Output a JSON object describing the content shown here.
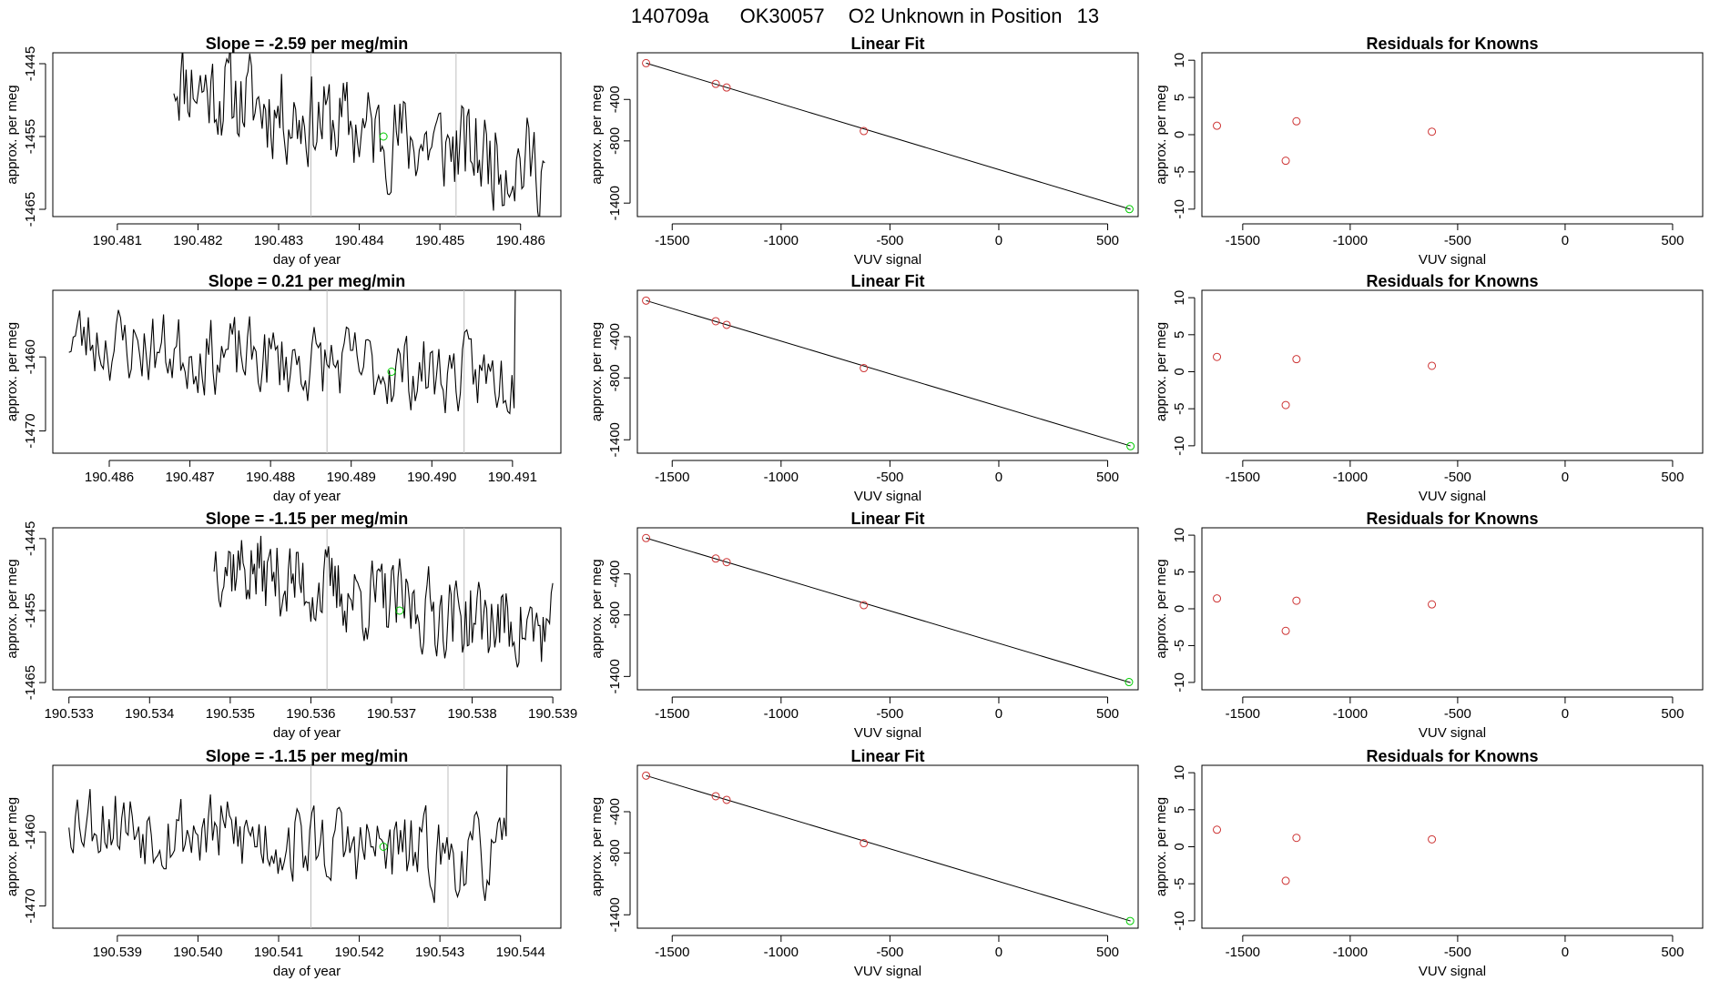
{
  "figure": {
    "title_parts": [
      "140709a",
      "OK30057",
      "O2 Unknown in Position",
      "13"
    ]
  },
  "colors": {
    "line": "#000000",
    "fit_point": "#cd3333",
    "unknown_point": "#00cc00",
    "vline": "#bebebe",
    "axis": "#000000"
  },
  "rows": [
    {
      "time_panel": {
        "title": "Slope =  -2.59  per meg/min",
        "xlabel": "day of year",
        "ylabel": "approx. per meg",
        "xlim": [
          190.4802,
          190.4865
        ],
        "ylim": [
          -1466,
          -1443.5
        ],
        "xticks": [
          190.481,
          190.482,
          190.483,
          190.484,
          190.485,
          190.486
        ],
        "xtick_labels": [
          "190.481",
          "190.482",
          "190.483",
          "190.484",
          "190.485",
          "190.486"
        ],
        "yticks": [
          -1465,
          -1455,
          -1445
        ],
        "ytick_labels": [
          "-1465",
          "-1455",
          "-1445"
        ],
        "vlines": [
          190.4834,
          190.4852
        ],
        "x_start": 190.4817,
        "x_end": 190.4863,
        "level_start": -1446,
        "level_end": -1459,
        "noise": 4.6,
        "seed": 11,
        "marker": [
          190.4843,
          -1455
        ]
      },
      "fit_panel": {
        "title": "Linear Fit",
        "xlabel": "VUV signal",
        "ylabel": "approx. per meg",
        "xlim": [
          -1660,
          640
        ],
        "ylim": [
          -1530,
          50
        ],
        "xticks": [
          -1500,
          -1000,
          -500,
          0,
          500
        ],
        "xtick_labels": [
          "-1500",
          "-1000",
          "-500",
          "0",
          "500"
        ],
        "yticks": [
          -1400,
          -800,
          -400
        ],
        "ytick_labels": [
          "-1400",
          "-800",
          "-400"
        ],
        "fit_line": [
          [
            -1620,
            -50
          ],
          [
            605,
            -1460
          ]
        ],
        "points": [
          [
            -1620,
            -50
          ],
          [
            -1300,
            -250
          ],
          [
            -1250,
            -285
          ],
          [
            -620,
            -705
          ]
        ],
        "unknown": [
          600,
          -1458
        ]
      },
      "resid_panel": {
        "title": "Residuals for Knowns",
        "xlabel": "VUV signal",
        "ylabel": "approx. per meg",
        "xlim": [
          -1690,
          640
        ],
        "ylim": [
          -11,
          11
        ],
        "xticks": [
          -1500,
          -1000,
          -500,
          0,
          500
        ],
        "xtick_labels": [
          "-1500",
          "-1000",
          "-500",
          "0",
          "500"
        ],
        "yticks": [
          -10,
          -5,
          0,
          5,
          10
        ],
        "ytick_labels": [
          "-10",
          "-5",
          "0",
          "5",
          "10"
        ],
        "points": [
          [
            -1620,
            1.2
          ],
          [
            -1300,
            -3.5
          ],
          [
            -1250,
            1.8
          ],
          [
            -620,
            0.4
          ]
        ]
      }
    },
    {
      "time_panel": {
        "title": "Slope =  0.21  per meg/min",
        "xlabel": "day of year",
        "ylabel": "approx. per meg",
        "xlim": [
          190.4853,
          190.4916
        ],
        "ylim": [
          -1473,
          -1451
        ],
        "xticks": [
          190.486,
          190.487,
          190.488,
          190.489,
          190.49,
          190.491
        ],
        "xtick_labels": [
          "190.486",
          "190.487",
          "190.488",
          "190.489",
          "190.490",
          "190.491"
        ],
        "yticks": [
          -1470,
          -1460
        ],
        "ytick_labels": [
          "-1470",
          "-1460"
        ],
        "vlines": [
          190.4887,
          190.4904
        ],
        "x_start": 190.4855,
        "x_end": 190.4911,
        "level_start": -1457,
        "level_end": -1463,
        "noise": 3.6,
        "seed": 23,
        "spike_end": -1450,
        "marker": [
          190.4895,
          -1462
        ]
      },
      "fit_panel": {
        "title": "Linear Fit",
        "xlabel": "VUV signal",
        "ylabel": "approx. per meg",
        "xlim": [
          -1660,
          640
        ],
        "ylim": [
          -1530,
          50
        ],
        "xticks": [
          -1500,
          -1000,
          -500,
          0,
          500
        ],
        "xtick_labels": [
          "-1500",
          "-1000",
          "-500",
          "0",
          "500"
        ],
        "yticks": [
          -1400,
          -800,
          -400
        ],
        "ytick_labels": [
          "-1400",
          "-800",
          "-400"
        ],
        "fit_line": [
          [
            -1620,
            -50
          ],
          [
            605,
            -1460
          ]
        ],
        "points": [
          [
            -1620,
            -50
          ],
          [
            -1300,
            -250
          ],
          [
            -1250,
            -285
          ],
          [
            -620,
            -705
          ]
        ],
        "unknown": [
          605,
          -1462
        ]
      },
      "resid_panel": {
        "title": "Residuals for Knowns",
        "xlabel": "VUV signal",
        "ylabel": "approx. per meg",
        "xlim": [
          -1690,
          640
        ],
        "ylim": [
          -11,
          11
        ],
        "xticks": [
          -1500,
          -1000,
          -500,
          0,
          500
        ],
        "xtick_labels": [
          "-1500",
          "-1000",
          "-500",
          "0",
          "500"
        ],
        "yticks": [
          -10,
          -5,
          0,
          5,
          10
        ],
        "ytick_labels": [
          "-10",
          "-5",
          "0",
          "5",
          "10"
        ],
        "points": [
          [
            -1620,
            2.0
          ],
          [
            -1300,
            -4.5
          ],
          [
            -1250,
            1.7
          ],
          [
            -620,
            0.8
          ]
        ]
      }
    },
    {
      "time_panel": {
        "title": "Slope =  -1.15  per meg/min",
        "xlabel": "day of year",
        "ylabel": "approx. per meg",
        "xlim": [
          190.5328,
          190.5391
        ],
        "ylim": [
          -1466,
          -1443.5
        ],
        "xticks": [
          190.533,
          190.534,
          190.535,
          190.536,
          190.537,
          190.538,
          190.539
        ],
        "xtick_labels": [
          "190.533",
          "190.534",
          "190.535",
          "190.536",
          "190.537",
          "190.538",
          "190.539"
        ],
        "yticks": [
          -1465,
          -1455,
          -1445
        ],
        "ytick_labels": [
          "-1465",
          "-1455",
          "-1445"
        ],
        "vlines": [
          190.5362,
          190.5379
        ],
        "x_start": 190.5348,
        "x_end": 190.539,
        "level_start": -1447,
        "level_end": -1458,
        "noise": 4.0,
        "seed": 37,
        "marker": [
          190.5371,
          -1455
        ]
      },
      "fit_panel": {
        "title": "Linear Fit",
        "xlabel": "VUV signal",
        "ylabel": "approx. per meg",
        "xlim": [
          -1660,
          640
        ],
        "ylim": [
          -1530,
          50
        ],
        "xticks": [
          -1500,
          -1000,
          -500,
          0,
          500
        ],
        "xtick_labels": [
          "-1500",
          "-1000",
          "-500",
          "0",
          "500"
        ],
        "yticks": [
          -1400,
          -800,
          -400
        ],
        "ytick_labels": [
          "-1400",
          "-800",
          "-400"
        ],
        "fit_line": [
          [
            -1620,
            -50
          ],
          [
            605,
            -1460
          ]
        ],
        "points": [
          [
            -1620,
            -50
          ],
          [
            -1300,
            -250
          ],
          [
            -1250,
            -285
          ],
          [
            -620,
            -705
          ]
        ],
        "unknown": [
          598,
          -1455
        ]
      },
      "resid_panel": {
        "title": "Residuals for Knowns",
        "xlabel": "VUV signal",
        "ylabel": "approx. per meg",
        "xlim": [
          -1690,
          640
        ],
        "ylim": [
          -11,
          11
        ],
        "xticks": [
          -1500,
          -1000,
          -500,
          0,
          500
        ],
        "xtick_labels": [
          "-1500",
          "-1000",
          "-500",
          "0",
          "500"
        ],
        "yticks": [
          -10,
          -5,
          0,
          5,
          10
        ],
        "ytick_labels": [
          "-10",
          "-5",
          "0",
          "5",
          "10"
        ],
        "points": [
          [
            -1620,
            1.4
          ],
          [
            -1300,
            -3.0
          ],
          [
            -1250,
            1.1
          ],
          [
            -620,
            0.6
          ]
        ]
      }
    },
    {
      "time_panel": {
        "title": "Slope =  -1.15  per meg/min",
        "xlabel": "day of year",
        "ylabel": "approx. per meg",
        "xlim": [
          190.5382,
          190.5445
        ],
        "ylim": [
          -1473,
          -1451
        ],
        "xticks": [
          190.539,
          190.54,
          190.541,
          190.542,
          190.543,
          190.544
        ],
        "xtick_labels": [
          "190.539",
          "190.540",
          "190.541",
          "190.542",
          "190.543",
          "190.544"
        ],
        "yticks": [
          -1470,
          -1460
        ],
        "ytick_labels": [
          "-1470",
          "-1460"
        ],
        "vlines": [
          190.5414,
          190.5431
        ],
        "x_start": 190.5384,
        "x_end": 190.5439,
        "level_start": -1457,
        "level_end": -1464,
        "noise": 3.8,
        "seed": 53,
        "spike_end": -1450,
        "marker": [
          190.5423,
          -1462
        ]
      },
      "fit_panel": {
        "title": "Linear Fit",
        "xlabel": "VUV signal",
        "ylabel": "approx. per meg",
        "xlim": [
          -1660,
          640
        ],
        "ylim": [
          -1530,
          50
        ],
        "xticks": [
          -1500,
          -1000,
          -500,
          0,
          500
        ],
        "xtick_labels": [
          "-1500",
          "-1000",
          "-500",
          "0",
          "500"
        ],
        "yticks": [
          -1400,
          -800,
          -400
        ],
        "ytick_labels": [
          "-1400",
          "-800",
          "-400"
        ],
        "fit_line": [
          [
            -1620,
            -50
          ],
          [
            605,
            -1460
          ]
        ],
        "points": [
          [
            -1620,
            -50
          ],
          [
            -1300,
            -250
          ],
          [
            -1250,
            -285
          ],
          [
            -620,
            -705
          ]
        ],
        "unknown": [
          603,
          -1460
        ]
      },
      "resid_panel": {
        "title": "Residuals for Knowns",
        "xlabel": "VUV signal",
        "ylabel": "approx. per meg",
        "xlim": [
          -1690,
          640
        ],
        "ylim": [
          -11,
          11
        ],
        "xticks": [
          -1500,
          -1000,
          -500,
          0,
          500
        ],
        "xtick_labels": [
          "-1500",
          "-1000",
          "-500",
          "0",
          "500"
        ],
        "yticks": [
          -10,
          -5,
          0,
          5,
          10
        ],
        "ytick_labels": [
          "-10",
          "-5",
          "0",
          "5",
          "10"
        ],
        "points": [
          [
            -1620,
            2.3
          ],
          [
            -1300,
            -4.6
          ],
          [
            -1250,
            1.2
          ],
          [
            -620,
            1.0
          ]
        ]
      }
    }
  ],
  "chart_data": {
    "type": "line",
    "title": "140709a  OK30057  O2 Unknown in Position 13",
    "panels_per_row": [
      "time series (approx. per meg vs day of year)",
      "Linear Fit (approx. per meg vs VUV signal)",
      "Residuals for Knowns (residual vs VUV signal)"
    ],
    "rows": 4,
    "slopes_per_meg_per_min": [
      -2.59,
      0.21,
      -1.15,
      -1.15
    ]
  }
}
